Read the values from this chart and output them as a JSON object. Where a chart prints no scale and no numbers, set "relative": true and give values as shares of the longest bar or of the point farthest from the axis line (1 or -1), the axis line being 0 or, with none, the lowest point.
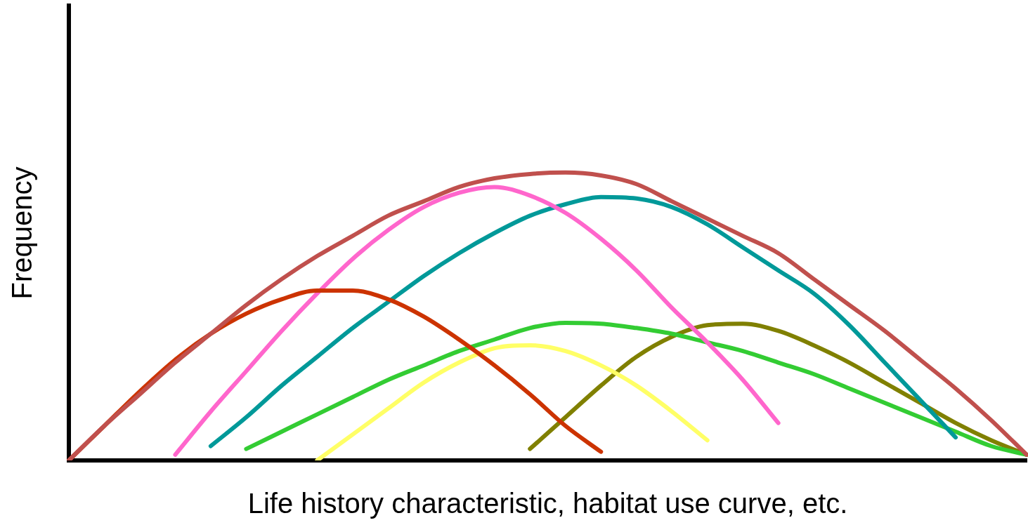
{
  "chart_data": {
    "type": "line",
    "relative": true,
    "xlabel": "Life history characteristic, habitat use curve, etc.",
    "ylabel": "Frequency",
    "legend": false,
    "grid": false,
    "marker": "none",
    "line_style": "solid",
    "categories": [
      null,
      null,
      null,
      null,
      null,
      null,
      null,
      null,
      null,
      null,
      null,
      null,
      null,
      null,
      null,
      null,
      null,
      null,
      null,
      null,
      null,
      null,
      null,
      null,
      null,
      null,
      null,
      null
    ],
    "series": [
      {
        "color": "#c0504d",
        "values": [
          0,
          0.12,
          0.23,
          0.34,
          0.44,
          0.54,
          0.63,
          0.71,
          0.78,
          0.85,
          0.9,
          0.95,
          0.98,
          0.995,
          1,
          0.99,
          0.96,
          0.9,
          0.84,
          0.78,
          0.72,
          0.63,
          0.54,
          0.45,
          0.35,
          0.25,
          0.14,
          0.02
        ]
      },
      {
        "color": "#cc3300",
        "values": [
          0,
          0.12,
          0.24,
          0.35,
          0.44,
          0.51,
          0.56,
          0.59,
          0.59,
          0.56,
          0.5,
          0.42,
          0.33,
          0.23,
          0.12,
          0.03,
          null,
          null,
          null,
          null,
          null,
          null,
          null,
          null,
          null,
          null,
          null,
          null
        ]
      },
      {
        "color": "#ff66cc",
        "values": [
          null,
          null,
          null,
          0.02,
          0.17,
          0.31,
          0.45,
          0.58,
          0.7,
          0.8,
          0.88,
          0.93,
          0.95,
          0.92,
          0.86,
          0.77,
          0.66,
          0.53,
          0.41,
          0.28,
          0.13,
          null,
          null,
          null,
          null,
          null,
          null,
          null
        ]
      },
      {
        "color": "#009999",
        "values": [
          null,
          null,
          null,
          null,
          0.05,
          0.15,
          0.26,
          0.36,
          0.46,
          0.55,
          0.64,
          0.72,
          0.79,
          0.85,
          0.89,
          0.915,
          0.91,
          0.88,
          0.82,
          0.74,
          0.66,
          0.58,
          0.47,
          0.34,
          0.21,
          0.08,
          null,
          null
        ]
      },
      {
        "color": "#33cc33",
        "values": [
          null,
          null,
          null,
          null,
          null,
          0.04,
          0.1,
          0.16,
          0.22,
          0.28,
          0.33,
          0.38,
          0.42,
          0.46,
          0.478,
          0.475,
          0.46,
          0.44,
          0.41,
          0.38,
          0.34,
          0.3,
          0.25,
          0.2,
          0.15,
          0.1,
          0.05,
          0.02
        ]
      },
      {
        "color": "#ffff66",
        "values": [
          null,
          null,
          null,
          null,
          null,
          null,
          null,
          0,
          0.09,
          0.18,
          0.27,
          0.34,
          0.39,
          0.4,
          0.38,
          0.33,
          0.26,
          0.17,
          0.07,
          null,
          null,
          null,
          null,
          null,
          null,
          null,
          null,
          null
        ]
      },
      {
        "color": "#808000",
        "values": [
          null,
          null,
          null,
          null,
          null,
          null,
          null,
          null,
          null,
          null,
          null,
          null,
          null,
          0.04,
          0.15,
          0.26,
          0.36,
          0.43,
          0.47,
          0.475,
          0.45,
          0.4,
          0.34,
          0.27,
          0.2,
          0.13,
          0.07,
          0.02
        ]
      }
    ]
  }
}
